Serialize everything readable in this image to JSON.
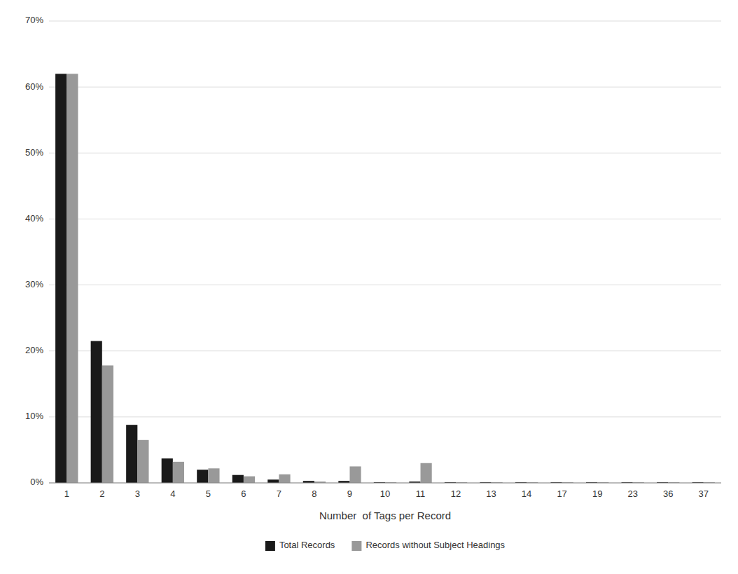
{
  "chart_data": {
    "type": "bar",
    "x_label": "Number  of Tags per Record",
    "categories": [
      1,
      2,
      3,
      4,
      5,
      6,
      7,
      8,
      9,
      10,
      11,
      12,
      13,
      14,
      17,
      19,
      23,
      36,
      37
    ],
    "series": [
      {
        "name": "Total Records",
        "color": "#1a1a1a",
        "values": [
          0.62,
          0.215,
          0.088,
          0.037,
          0.02,
          0.012,
          0.005,
          0.003,
          0.003,
          0.001,
          0.002,
          0.001,
          0.001,
          0.001,
          0.001,
          0.001,
          0.001,
          0.001,
          0.001
        ]
      },
      {
        "name": "Records without Subject Headings",
        "color": "#999999",
        "values": [
          0.62,
          0.178,
          0.065,
          0.032,
          0.022,
          0.01,
          0.013,
          0.002,
          0.025,
          0.001,
          0.03,
          0.001,
          0.001,
          0.001,
          0.001,
          0.001,
          0.001,
          0.001,
          0.001
        ]
      }
    ],
    "ylim": [
      0,
      0.7
    ],
    "yticks": [
      {
        "value": 0.0,
        "label": "0%"
      },
      {
        "value": 0.1,
        "label": "10%"
      },
      {
        "value": 0.2,
        "label": "20%"
      },
      {
        "value": 0.3,
        "label": "30%"
      },
      {
        "value": 0.4,
        "label": "40%"
      },
      {
        "value": 0.5,
        "label": "50%"
      },
      {
        "value": 0.6,
        "label": "60%"
      },
      {
        "value": 0.7,
        "label": "70%"
      }
    ],
    "grid": true,
    "legend": "bottom"
  }
}
